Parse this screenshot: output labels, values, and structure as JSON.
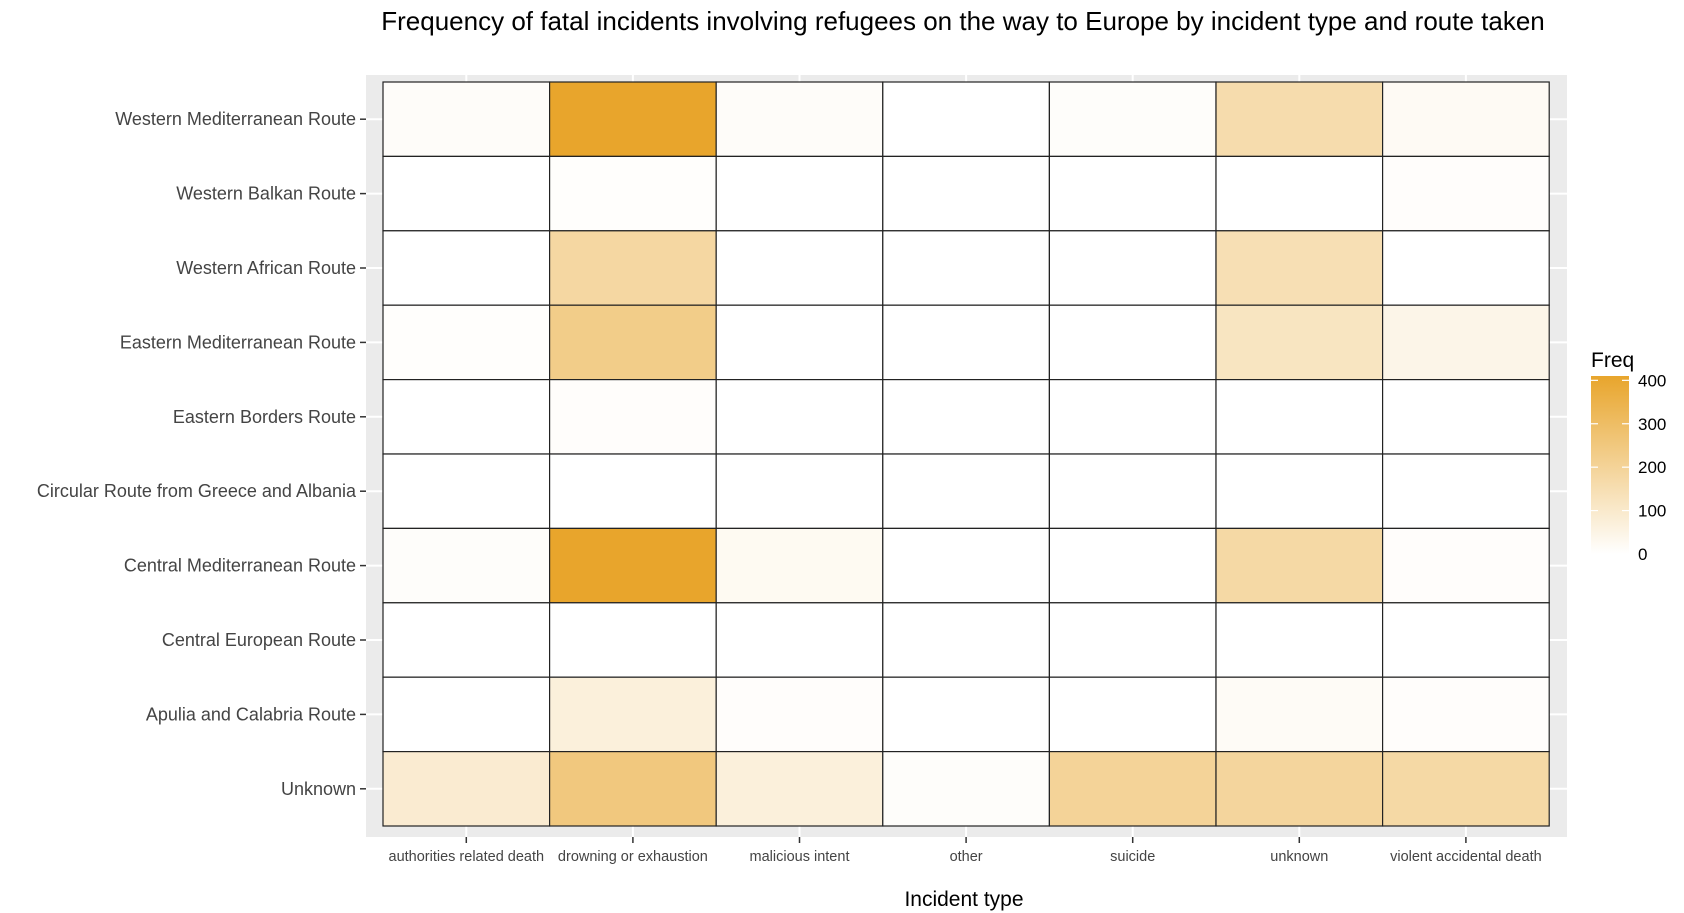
{
  "chart_data": {
    "type": "heatmap",
    "title": "Frequency of fatal incidents involving refugees on the way to Europe by incident type and route taken",
    "xlabel": "Incident type",
    "ylabel": "",
    "x_categories": [
      "authorities related death",
      "drowning or exhaustion",
      "malicious intent",
      "other",
      "suicide",
      "unknown",
      "violent accidental death"
    ],
    "y_categories": [
      "Western Mediterranean Route",
      "Western Balkan Route",
      "Western African Route",
      "Eastern Mediterranean Route",
      "Eastern Borders Route",
      "Circular Route from Greece and Albania",
      "Central Mediterranean Route",
      "Central European Route",
      "Apulia and Calabria Route",
      "Unknown"
    ],
    "values": [
      [
        12,
        410,
        12,
        0,
        10,
        160,
        22
      ],
      [
        0,
        6,
        0,
        0,
        0,
        0,
        8
      ],
      [
        0,
        180,
        0,
        0,
        0,
        145,
        0
      ],
      [
        6,
        230,
        0,
        0,
        0,
        120,
        45
      ],
      [
        0,
        8,
        0,
        0,
        0,
        0,
        0
      ],
      [
        0,
        0,
        0,
        0,
        0,
        0,
        0
      ],
      [
        10,
        410,
        25,
        0,
        0,
        175,
        8
      ],
      [
        0,
        0,
        0,
        0,
        0,
        0,
        0
      ],
      [
        0,
        70,
        8,
        0,
        0,
        18,
        8
      ],
      [
        90,
        250,
        70,
        10,
        200,
        190,
        175
      ]
    ],
    "legend": {
      "title": "Freq",
      "ticks": [
        400,
        300,
        200,
        100,
        0
      ],
      "min": 0,
      "max": 410,
      "color_low": "#ffffff",
      "color_high": "#E8A52C",
      "placement": "right"
    },
    "grid": true
  }
}
